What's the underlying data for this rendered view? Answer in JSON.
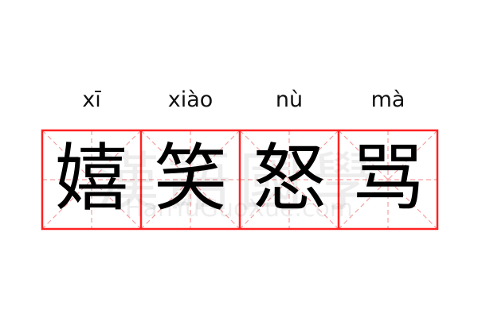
{
  "words": [
    {
      "pinyin": "xī",
      "hanzi": "嬉"
    },
    {
      "pinyin": "xiào",
      "hanzi": "笑"
    },
    {
      "pinyin": "nù",
      "hanzi": "怒"
    },
    {
      "pinyin": "mà",
      "hanzi": "骂"
    }
  ],
  "watermark": {
    "chinese": "漢語國學",
    "latin": "HanYuGuoXue.com"
  },
  "colors": {
    "grid_border": "#ff2222",
    "grid_guides": "#f5a0a0",
    "text": "#000000"
  }
}
